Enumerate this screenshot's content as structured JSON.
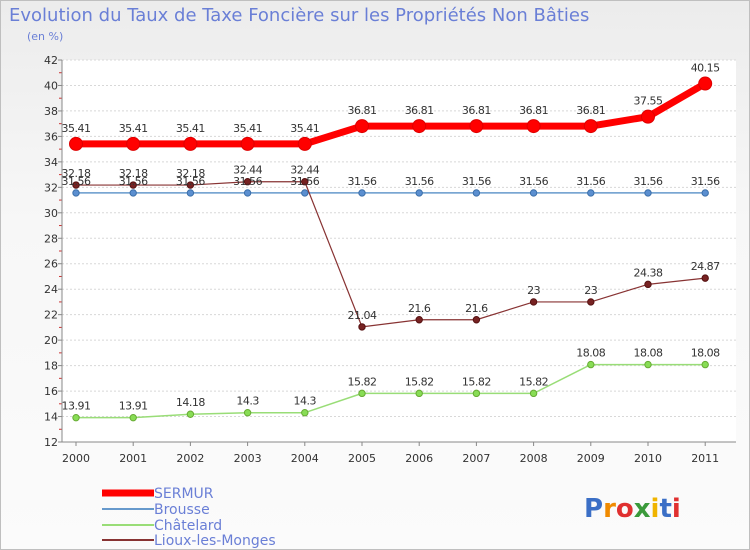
{
  "chart_data": {
    "type": "line",
    "title": "Evolution du Taux de Taxe Foncière sur les Propriétés Non Bâties",
    "subtitle": "(en %)",
    "x": [
      "2000",
      "2001",
      "2002",
      "2003",
      "2004",
      "2005",
      "2006",
      "2007",
      "2008",
      "2009",
      "2010",
      "2011"
    ],
    "ylim": [
      12,
      42
    ],
    "yticks": [
      "12",
      "14",
      "16",
      "18",
      "20",
      "22",
      "24",
      "26",
      "28",
      "30",
      "32",
      "34",
      "36",
      "38",
      "40",
      "42"
    ],
    "grid": "horizontal",
    "legend_position": "bottom-left",
    "series": [
      {
        "name": "SERMUR",
        "color": "#ff0000",
        "values": [
          35.41,
          35.41,
          35.41,
          35.41,
          35.41,
          36.81,
          36.81,
          36.81,
          36.81,
          36.81,
          37.55,
          40.15
        ],
        "labels": [
          "35.41",
          "35.41",
          "35.41",
          "35.41",
          "35.41",
          "36.81",
          "36.81",
          "36.81",
          "36.81",
          "36.81",
          "37.55",
          "40.15"
        ]
      },
      {
        "name": "Brousse",
        "color": "#6699cc",
        "values": [
          31.56,
          31.56,
          31.56,
          31.56,
          31.56,
          31.56,
          31.56,
          31.56,
          31.56,
          31.56,
          31.56,
          31.56
        ],
        "labels": [
          "31.56",
          "31.56",
          "31.56",
          "31.56",
          "31.56",
          "31.56",
          "31.56",
          "31.56",
          "31.56",
          "31.56",
          "31.56",
          "31.56"
        ]
      },
      {
        "name": "Châtelard",
        "color": "#99dd77",
        "values": [
          13.91,
          13.91,
          14.18,
          14.3,
          14.3,
          15.82,
          15.82,
          15.82,
          15.82,
          18.08,
          18.08,
          18.08
        ],
        "labels": [
          "13.91",
          "13.91",
          "14.18",
          "14.3",
          "14.3",
          "15.82",
          "15.82",
          "15.82",
          "15.82",
          "18.08",
          "18.08",
          "18.08"
        ]
      },
      {
        "name": "Lioux-les-Monges",
        "color": "#883333",
        "values": [
          32.18,
          32.18,
          32.18,
          32.44,
          32.44,
          21.04,
          21.6,
          21.6,
          23,
          23,
          24.38,
          24.87
        ],
        "labels": [
          "32.18",
          "32.18",
          "32.18",
          "32.44",
          "32.44",
          "21.04",
          "21.6",
          "21.6",
          "23",
          "23",
          "24.38",
          "24.87"
        ]
      }
    ]
  },
  "logo": {
    "text": "Proxiti"
  }
}
